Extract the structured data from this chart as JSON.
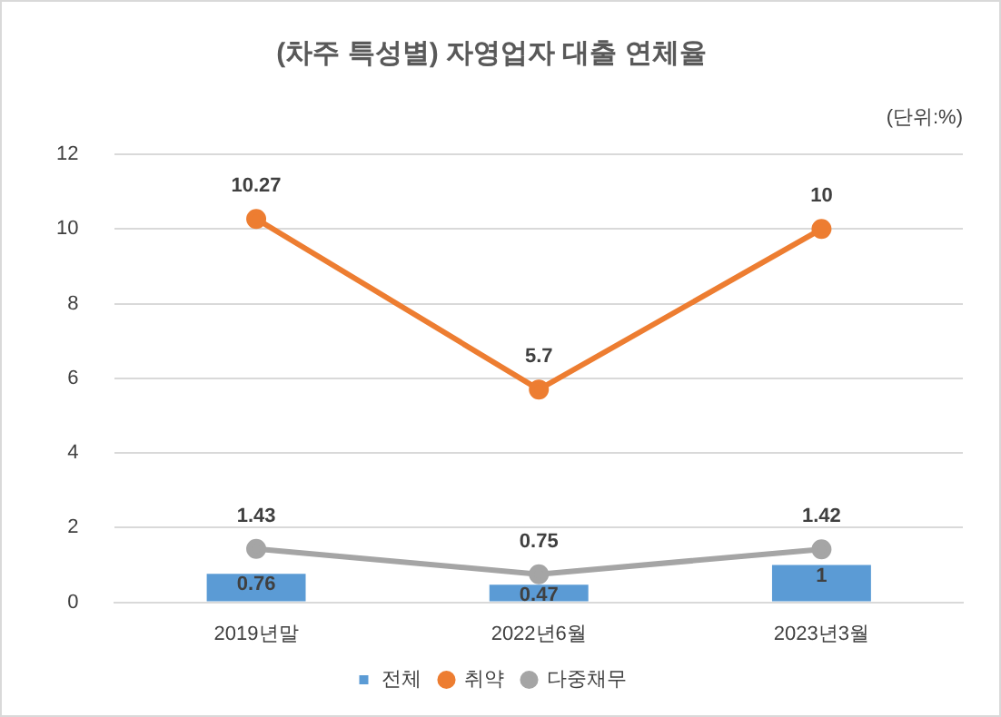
{
  "chart_data": {
    "type": "bar",
    "title": "(차주 특성별) 자영업자 대출 연체율",
    "annotations": [
      "(단위:%)"
    ],
    "categories": [
      "2019년말",
      "2022년6월",
      "2023년3월"
    ],
    "series": [
      {
        "name": "전체",
        "color": "#5b9bd5",
        "values": [
          0.76,
          0.47,
          1
        ]
      },
      {
        "name": "취약",
        "type": "line",
        "color": "#ed7d31",
        "values": [
          10.27,
          5.7,
          10
        ]
      },
      {
        "name": "다중채무",
        "type": "line",
        "color": "#a5a5a5",
        "values": [
          1.43,
          0.75,
          1.42
        ]
      }
    ],
    "ylim": [
      0,
      12
    ],
    "yticks": [
      0,
      2,
      4,
      6,
      8,
      10,
      12
    ],
    "grid": "y",
    "legend": "bottom",
    "marker": "circle",
    "line_style": "solid",
    "data_labels": true
  }
}
